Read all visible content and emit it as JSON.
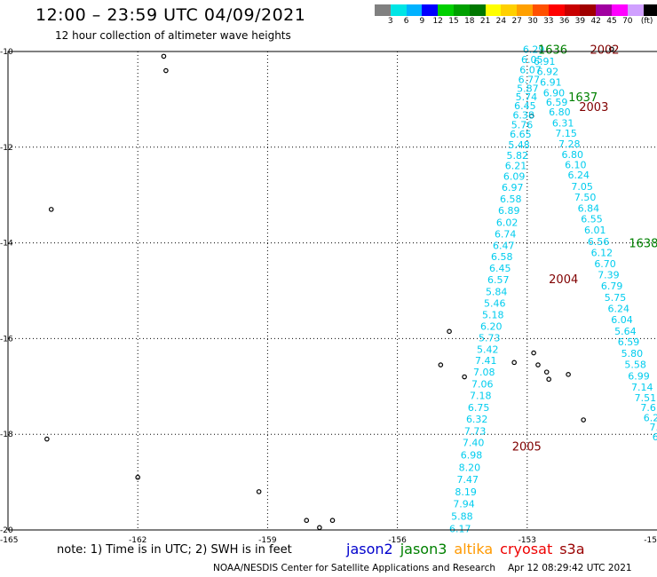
{
  "header": {
    "title": "12:00 – 23:59 UTC 04/09/2021",
    "subtitle": "12 hour collection of altimeter wave heights"
  },
  "colorbar": {
    "colors": [
      "#808080",
      "#00e5e5",
      "#00b2ff",
      "#0000ff",
      "#00d000",
      "#00a000",
      "#007800",
      "#ffff00",
      "#ffd000",
      "#ffa000",
      "#ff5000",
      "#ff0000",
      "#c80000",
      "#a00000",
      "#a000a0",
      "#ff00ff",
      "#d0a0ff",
      "#000000"
    ],
    "ticks": [
      "3",
      "6",
      "9",
      "12",
      "15",
      "18",
      "21",
      "24",
      "27",
      "30",
      "33",
      "36",
      "39",
      "42",
      "45",
      "70",
      "(ft)"
    ]
  },
  "map": {
    "lon_labels": [
      "-165",
      "-162",
      "-159",
      "-156",
      "-153",
      "-15"
    ],
    "lat_labels": [
      "-10",
      "-12",
      "-14",
      "-16",
      "-18",
      "-20"
    ],
    "island_points": [
      [
        -161.4,
        -10.1
      ],
      [
        -161.35,
        -10.4
      ],
      [
        -164.0,
        -13.3
      ],
      [
        -164.1,
        -18.1
      ],
      [
        -162.0,
        -18.9
      ],
      [
        -159.2,
        -19.2
      ],
      [
        -158.1,
        -19.8
      ],
      [
        -157.8,
        -19.95
      ],
      [
        -157.5,
        -19.8
      ],
      [
        -154.8,
        -15.85
      ],
      [
        -155.0,
        -16.55
      ],
      [
        -154.45,
        -16.8
      ],
      [
        -153.3,
        -16.5
      ],
      [
        -152.85,
        -16.3
      ],
      [
        -152.75,
        -16.55
      ],
      [
        -152.55,
        -16.7
      ],
      [
        -152.5,
        -16.85
      ],
      [
        -152.05,
        -16.75
      ],
      [
        -151.7,
        -17.7
      ],
      [
        -152.9,
        -11.35
      ],
      [
        -151.05,
        -9.95
      ]
    ]
  },
  "tracks": [
    {
      "id": "track1",
      "time": "1636",
      "time2": "2002",
      "color": "#00ccee",
      "values": [
        "6.29",
        "6.05",
        "6.07",
        "6.77",
        "5.87",
        "5.74",
        "6.45",
        "6.38",
        "5.76",
        "6.65",
        "5.48",
        "5.82",
        "6.21",
        "6.09",
        "6.97",
        "6.58",
        "6.89",
        "6.02",
        "6.74",
        "6.47",
        "6.58",
        "6.45",
        "6.57",
        "5.84",
        "5.46",
        "5.18",
        "6.20",
        "5.73",
        "5.42",
        "7.41",
        "7.08",
        "7.06",
        "7.18",
        "6.75",
        "6.32",
        "7.73",
        "7.40",
        "6.98",
        "8.20",
        "7.47",
        "8.19",
        "7.94",
        "5.88",
        "6.17"
      ],
      "lats": [
        -9.95,
        -10.17,
        -10.38,
        -10.58,
        -10.77,
        -10.95,
        -11.13,
        -11.33,
        -11.53,
        -11.73,
        -11.95,
        -12.17,
        -12.38,
        -12.61,
        -12.84,
        -13.08,
        -13.32,
        -13.57,
        -13.81,
        -14.05,
        -14.29,
        -14.53,
        -14.77,
        -15.02,
        -15.26,
        -15.5,
        -15.74,
        -15.98,
        -16.22,
        -16.46,
        -16.7,
        -16.95,
        -17.19,
        -17.44,
        -17.68,
        -17.93,
        -18.17,
        -18.43,
        -18.69,
        -18.94,
        -19.2,
        -19.45,
        -19.71,
        -19.97
      ],
      "lon_start": -152.85,
      "lon_end": -154.55
    },
    {
      "id": "track2",
      "time": "1637",
      "time2": "2003",
      "color": "#00ccee",
      "values": [
        "6.91",
        "6.92",
        "6.91",
        "6.90",
        "6.59",
        "6.80",
        "6.31",
        "7.15",
        "7.28",
        "6.80",
        "6.10",
        "6.24",
        "7.05",
        "7.50",
        "6.84",
        "6.55",
        "6.01",
        "6.56",
        "6.12",
        "6.70",
        "7.39",
        "6.79",
        "5.75",
        "6.24",
        "6.04",
        "5.64",
        "6.59",
        "5.80",
        "5.58",
        "6.99",
        "7.14",
        "7.51",
        "7.6",
        "6.2",
        "7.",
        "6."
      ],
      "lats": [
        -10.2,
        -10.42,
        -10.64,
        -10.86,
        -11.06,
        -11.26,
        -11.49,
        -11.71,
        -11.93,
        -12.15,
        -12.37,
        -12.58,
        -12.82,
        -13.04,
        -13.27,
        -13.5,
        -13.73,
        -13.97,
        -14.2,
        -14.43,
        -14.67,
        -14.9,
        -15.14,
        -15.37,
        -15.6,
        -15.84,
        -16.07,
        -16.31,
        -16.54,
        -16.78,
        -17.01,
        -17.24,
        -17.44,
        -17.65,
        -17.85,
        -18.05
      ],
      "lon_start": -152.6,
      "lon_end": -150.0
    }
  ],
  "track_labels": [
    {
      "text": "1636",
      "lon": -152.75,
      "lat": -9.95,
      "color": "#008000"
    },
    {
      "text": "2002",
      "lon": -151.55,
      "lat": -9.95,
      "color": "#800000"
    },
    {
      "text": "1637",
      "lon": -152.05,
      "lat": -10.95,
      "color": "#008000"
    },
    {
      "text": "2003",
      "lon": -151.8,
      "lat": -11.15,
      "color": "#800000"
    },
    {
      "text": "1638",
      "lon": -150.65,
      "lat": -14.0,
      "color": "#008000"
    },
    {
      "text": "2004",
      "lon": -152.5,
      "lat": -14.75,
      "color": "#800000"
    },
    {
      "text": "2005",
      "lon": -153.35,
      "lat": -18.25,
      "color": "#800000"
    }
  ],
  "footer": {
    "note": "note: 1) Time is in UTC; 2) SWH is in feet",
    "legend": [
      {
        "label": "jason2",
        "color": "#0000cc"
      },
      {
        "label": "jason3",
        "color": "#008000"
      },
      {
        "label": "altika",
        "color": "#ff9900"
      },
      {
        "label": "cryosat",
        "color": "#ee0000"
      },
      {
        "label": "s3a",
        "color": "#990000"
      }
    ],
    "credit": "NOAA/NESDIS Center for Satellite Applications and Research",
    "timestamp": "Apr 12 08:29:42 UTC 2021"
  }
}
